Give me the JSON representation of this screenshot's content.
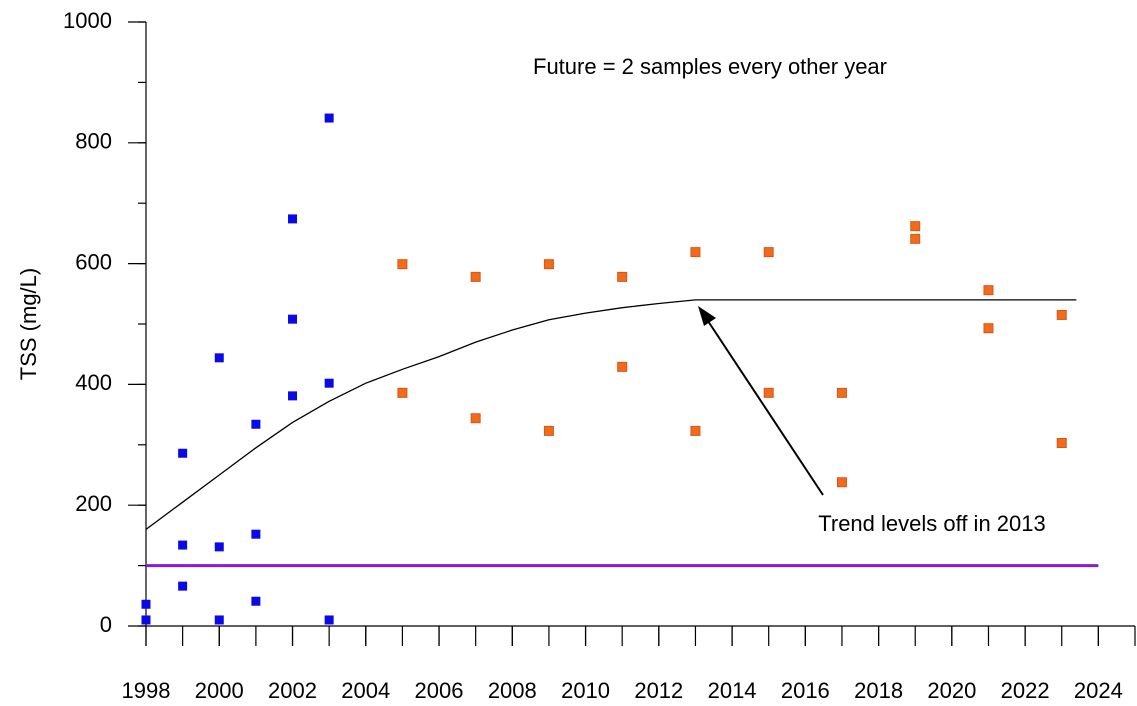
{
  "chart_data": {
    "type": "scatter",
    "y_label": "TSS (mg/L)",
    "annotations": [
      "Future = 2 samples every other year",
      "Trend levels off in 2013"
    ],
    "xlim": [
      1998,
      2025
    ],
    "xticks": [
      1998,
      2000,
      2002,
      2004,
      2006,
      2008,
      2010,
      2012,
      2014,
      2016,
      2018,
      2020,
      2022,
      2024
    ],
    "ylim": [
      0,
      1000
    ],
    "yticks": [
      0,
      200,
      400,
      600,
      800,
      1000
    ],
    "grid": false,
    "series": [
      {
        "mode": "markers",
        "color": "#0a0ae6",
        "x": [
          1998,
          1998,
          1999,
          1999,
          1999,
          2000,
          2000,
          2000,
          2001,
          2001,
          2001,
          2002,
          2002,
          2002,
          2003,
          2003,
          2003
        ],
        "values": [
          36,
          10,
          286,
          134,
          66,
          444,
          131,
          10,
          334,
          152,
          41,
          674,
          508,
          381,
          841,
          402,
          10
        ]
      },
      {
        "mode": "markers",
        "color": "#f26b1d",
        "x": [
          2005,
          2005,
          2007,
          2007,
          2009,
          2009,
          2011,
          2011,
          2013,
          2013,
          2015,
          2015,
          2017,
          2017,
          2019,
          2019,
          2021,
          2021,
          2023,
          2023
        ],
        "values": [
          599,
          386,
          578,
          344,
          599,
          323,
          578,
          429,
          619,
          323,
          619,
          386,
          386,
          238,
          662,
          641,
          556,
          493,
          515,
          303
        ]
      },
      {
        "mode": "line",
        "color": "#000000",
        "x": [
          1998,
          1999,
          2000,
          2001,
          2002,
          2003,
          2004,
          2005,
          2006,
          2007,
          2008,
          2009,
          2010,
          2011,
          2012,
          2013,
          2014,
          2023.4
        ],
        "values": [
          160,
          205,
          250,
          295,
          337,
          372,
          402,
          425,
          446,
          470,
          490,
          507,
          518,
          527,
          534,
          540,
          540,
          540
        ]
      },
      {
        "mode": "line",
        "color": "#8a1ad6",
        "x": [
          1998,
          2024
        ],
        "values": [
          100,
          100
        ]
      }
    ]
  }
}
